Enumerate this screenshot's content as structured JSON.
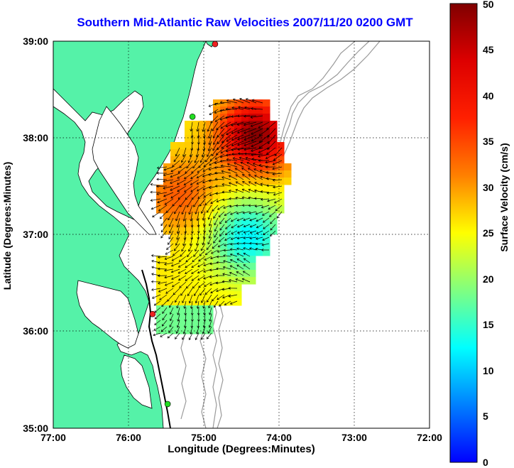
{
  "title": "Southern Mid-Atlantic Raw Velocities 2007/11/20 0200 GMT",
  "xlabel": "Longitude (Degrees:Minutes)",
  "ylabel": "Latitude (Degrees:Minutes)",
  "colorbar": {
    "label": "Surface Velocity (cm/s)",
    "range": [
      0,
      50
    ],
    "ticks": [
      "0",
      "5",
      "10",
      "15",
      "20",
      "25",
      "30",
      "35",
      "40",
      "45",
      "50"
    ]
  },
  "axes": {
    "lon_ticks": [
      "77:00",
      "76:00",
      "75:00",
      "74:00",
      "73:00",
      "72:00"
    ],
    "lat_ticks": [
      "35:00",
      "36:00",
      "37:00",
      "38:00",
      "39:00"
    ],
    "lon_range": [
      -77,
      -72
    ],
    "lat_range": [
      35,
      39
    ],
    "grid": true
  },
  "colors": {
    "land": "#55f2a8",
    "coast": "#000000",
    "bathymetry": "#9a9a9a",
    "arrows": "#000000",
    "title": "#0000ff",
    "station_green": "#22dd22",
    "station_red": "#ee2222"
  },
  "stations": [
    {
      "name": "",
      "lon": -74.85,
      "lat": 38.97,
      "color": "red"
    },
    {
      "name": "",
      "lon": -75.15,
      "lat": 38.22,
      "color": "green"
    },
    {
      "name": "",
      "lon": -75.68,
      "lat": 36.18,
      "color": "red"
    },
    {
      "name": "",
      "lon": -75.48,
      "lat": 35.25,
      "color": "green"
    }
  ]
}
